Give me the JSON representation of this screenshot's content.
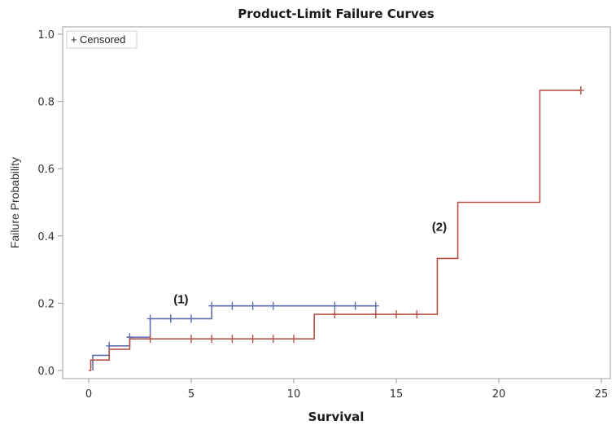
{
  "chart_data": {
    "type": "line",
    "subtype": "step",
    "title": "Product-Limit Failure Curves",
    "xlabel": "Survival",
    "ylabel": "Failure Probability",
    "xlim": [
      -1.1,
      25.5
    ],
    "ylim": [
      -0.025,
      1.02
    ],
    "xticks": [
      0,
      5,
      10,
      15,
      20,
      25
    ],
    "xtick_labels": [
      "0",
      "5",
      "10",
      "15",
      "20",
      "25"
    ],
    "yticks": [
      0.0,
      0.2,
      0.4,
      0.6,
      0.8,
      1.0
    ],
    "ytick_labels": [
      "0.0",
      "0.2",
      "0.4",
      "0.6",
      "0.8",
      "1.0"
    ],
    "grid": false,
    "legend": {
      "position": "top-left",
      "entries": [
        {
          "marker": "+",
          "label": "Censored"
        }
      ]
    },
    "series": [
      {
        "name": "(1)",
        "color": "#5b6db0",
        "steps": [
          {
            "x": 0.2,
            "y": 0.0
          },
          {
            "x": 0.2,
            "y": 0.045
          },
          {
            "x": 1,
            "y": 0.073
          },
          {
            "x": 2,
            "y": 0.099
          },
          {
            "x": 3,
            "y": 0.154
          },
          {
            "x": 6,
            "y": 0.192
          }
        ],
        "end_x": 14,
        "censored": [
          {
            "x": 1,
            "y": 0.073
          },
          {
            "x": 2,
            "y": 0.099
          },
          {
            "x": 3,
            "y": 0.154
          },
          {
            "x": 4,
            "y": 0.154
          },
          {
            "x": 5,
            "y": 0.154
          },
          {
            "x": 6,
            "y": 0.192
          },
          {
            "x": 7,
            "y": 0.192
          },
          {
            "x": 8,
            "y": 0.192
          },
          {
            "x": 9,
            "y": 0.192
          },
          {
            "x": 12,
            "y": 0.192
          },
          {
            "x": 13,
            "y": 0.192
          },
          {
            "x": 14,
            "y": 0.192
          }
        ]
      },
      {
        "name": "(2)",
        "color": "#b5524a",
        "steps": [
          {
            "x": 0.0,
            "y": 0.0
          },
          {
            "x": 0.1,
            "y": 0.031
          },
          {
            "x": 1,
            "y": 0.063
          },
          {
            "x": 2,
            "y": 0.094
          },
          {
            "x": 11,
            "y": 0.167
          },
          {
            "x": 17,
            "y": 0.333
          },
          {
            "x": 18,
            "y": 0.5
          },
          {
            "x": 22,
            "y": 0.833
          }
        ],
        "end_x": 24,
        "censored": [
          {
            "x": 3,
            "y": 0.094
          },
          {
            "x": 5,
            "y": 0.094
          },
          {
            "x": 6,
            "y": 0.094
          },
          {
            "x": 7,
            "y": 0.094
          },
          {
            "x": 8,
            "y": 0.094
          },
          {
            "x": 9,
            "y": 0.094
          },
          {
            "x": 10,
            "y": 0.094
          },
          {
            "x": 12,
            "y": 0.167
          },
          {
            "x": 14,
            "y": 0.167
          },
          {
            "x": 15,
            "y": 0.167
          },
          {
            "x": 16,
            "y": 0.167
          },
          {
            "x": 24,
            "y": 0.833
          }
        ]
      }
    ],
    "annotations": [
      {
        "text": "(1)",
        "x": 4.5,
        "y": 0.2,
        "series": "(1)"
      },
      {
        "text": "(2)",
        "x": 17.1,
        "y": 0.415,
        "series": "(2)"
      }
    ]
  }
}
